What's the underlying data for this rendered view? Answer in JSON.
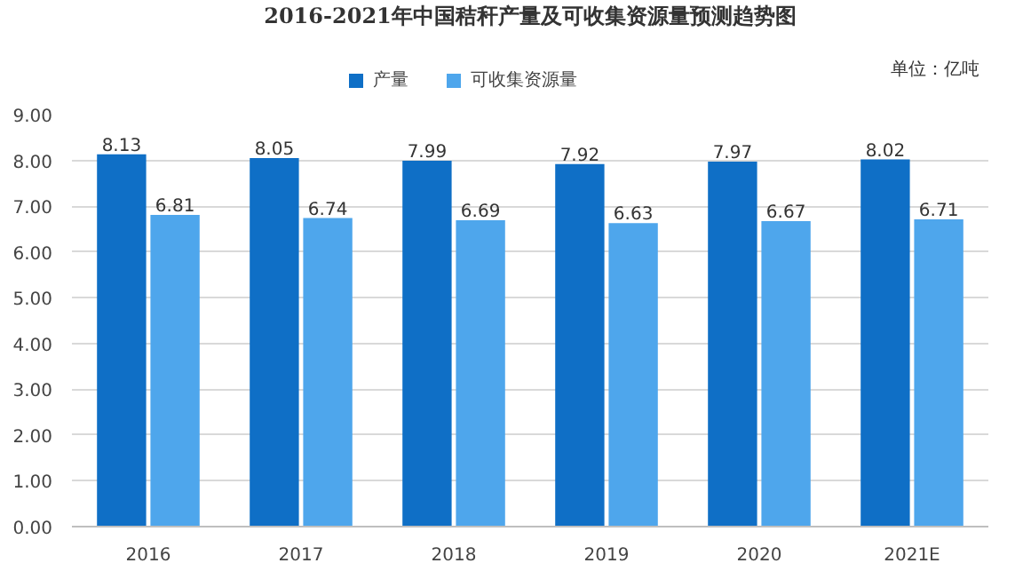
{
  "chart_data": {
    "type": "bar",
    "title": "2016-2021年中国秸秆产量及可收集资源量预测趋势图",
    "annotations": [
      "单位：亿吨"
    ],
    "categories": [
      "2016",
      "2017",
      "2018",
      "2019",
      "2020",
      "2021E"
    ],
    "series": [
      {
        "name": "产量",
        "color": "#0f6fc6",
        "values": [
          8.13,
          8.05,
          7.99,
          7.92,
          7.97,
          8.02
        ]
      },
      {
        "name": "可收集资源量",
        "color": "#4ea6ec",
        "values": [
          6.81,
          6.74,
          6.69,
          6.63,
          6.67,
          6.71
        ]
      }
    ],
    "ylim": [
      0,
      9
    ],
    "yticks": [
      {
        "value": 0,
        "label": "0.00"
      },
      {
        "value": 1,
        "label": "1.00"
      },
      {
        "value": 2,
        "label": "2.00"
      },
      {
        "value": 3,
        "label": "3.00"
      },
      {
        "value": 4,
        "label": "4.00"
      },
      {
        "value": 5,
        "label": "5.00"
      },
      {
        "value": 6,
        "label": "6.00"
      },
      {
        "value": 7,
        "label": "7.00"
      },
      {
        "value": 8,
        "label": "8.00"
      },
      {
        "value": 9,
        "label": "9.00"
      }
    ],
    "grid": "y",
    "legend": "top",
    "data_labels": true
  }
}
